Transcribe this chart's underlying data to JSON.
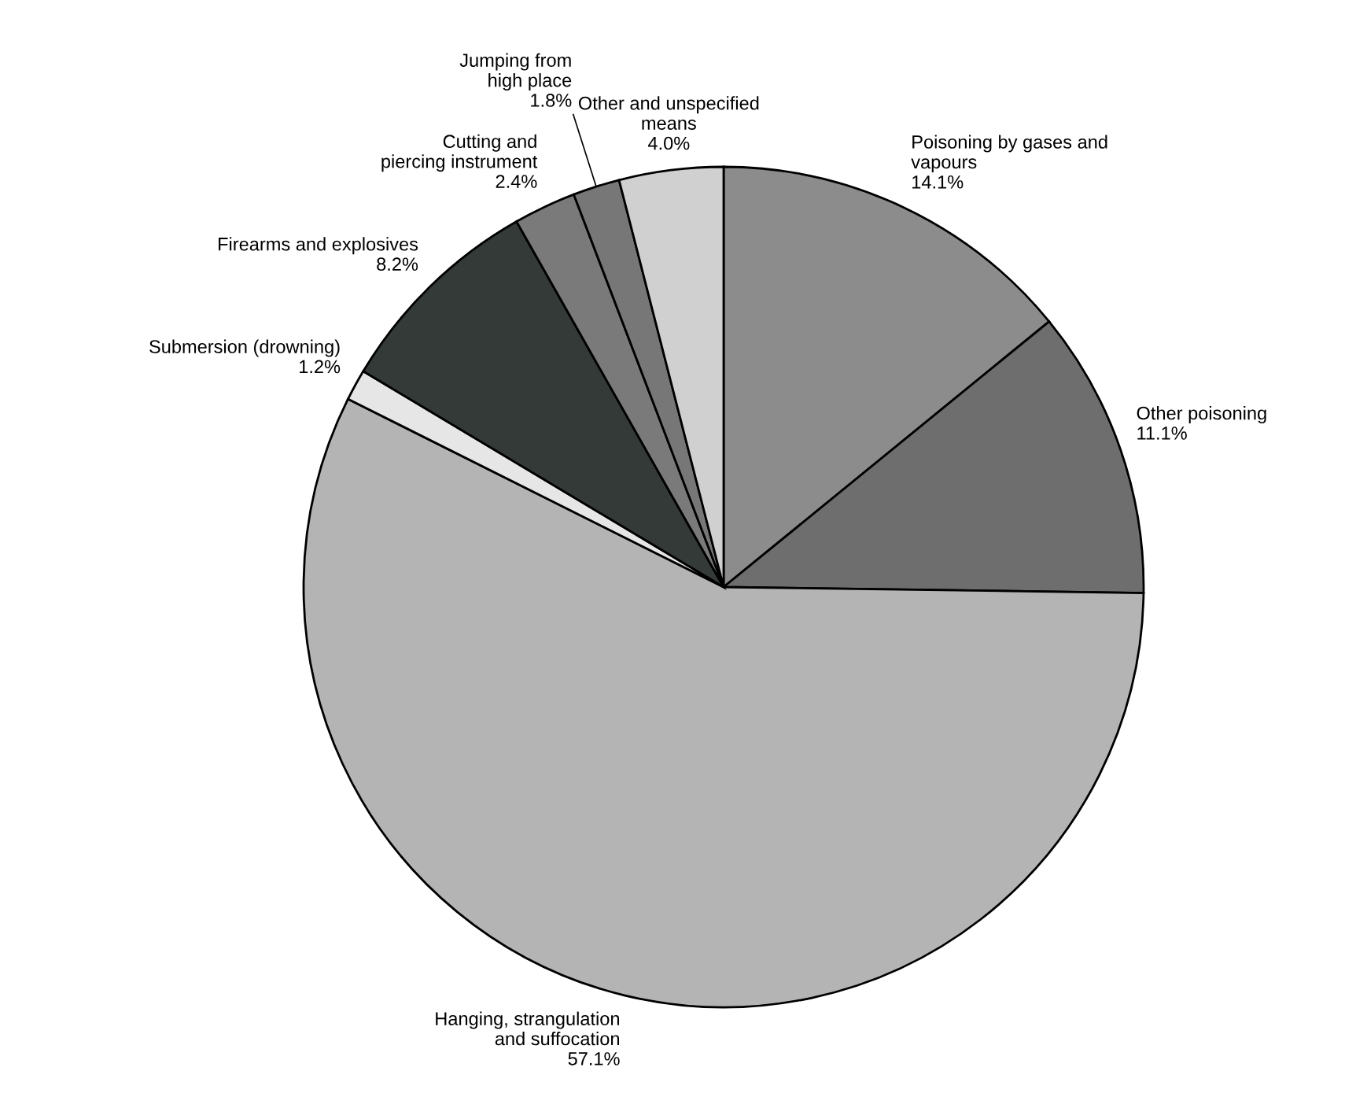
{
  "chart_data": {
    "type": "pie",
    "categories": [
      "Poisoning by gases and\nvapours",
      "Other poisoning",
      "Hanging, strangulation\nand suffocation",
      "Submersion (drowning)",
      "Firearms and explosives",
      "Cutting and\npiercing instrument",
      "Jumping from\nhigh place",
      "Other and unspecified\nmeans"
    ],
    "values": [
      14.1,
      11.1,
      57.1,
      1.2,
      8.2,
      2.4,
      1.8,
      4.0
    ],
    "value_labels": [
      "14.1%",
      "11.1%",
      "57.1%",
      "1.2%",
      "8.2%",
      "2.4%",
      "1.8%",
      "4.0%"
    ],
    "colors": [
      "#8c8c8c",
      "#6e6e6e",
      "#b4b4b4",
      "#e6e6e6",
      "#333a38",
      "#7a7a7a",
      "#777777",
      "#d0d0d0"
    ],
    "legend": false
  }
}
